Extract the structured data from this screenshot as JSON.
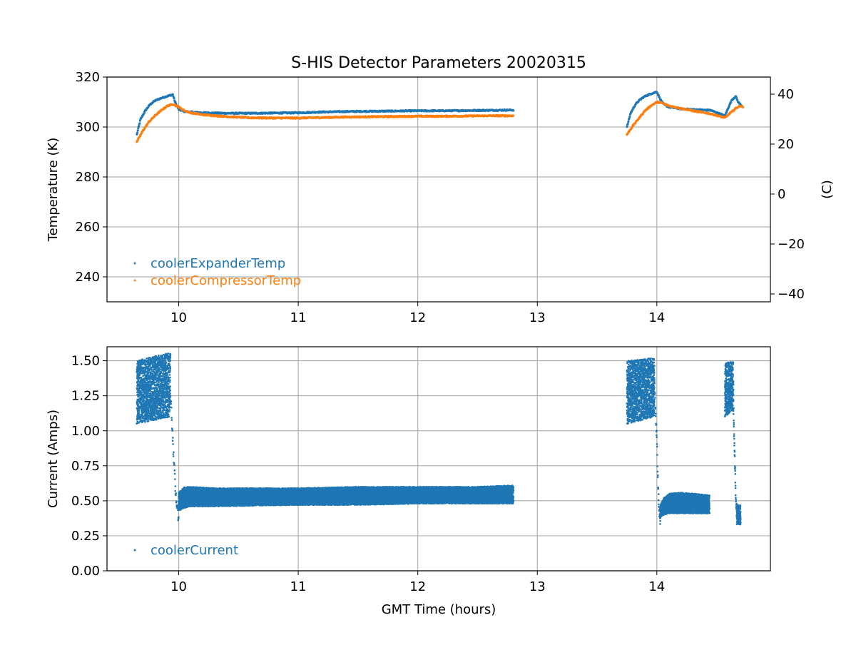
{
  "chart_data": [
    {
      "type": "scatter",
      "title": "S-HIS Detector Parameters 20020315",
      "xlabel": "",
      "ylabel": "Temperature (K)",
      "ylabel_right": "(C)",
      "xlim": [
        9.4,
        14.95
      ],
      "ylim": [
        230,
        320
      ],
      "ylim_right": [
        -43.15,
        46.85
      ],
      "xticks": [
        "10",
        "11",
        "12",
        "13",
        "14"
      ],
      "yticks": [
        "240",
        "260",
        "280",
        "300",
        "320"
      ],
      "yticks_right": [
        "−40",
        "−20",
        "0",
        "20",
        "40"
      ],
      "grid": true,
      "legend_position": "lower-left",
      "series": [
        {
          "name": "coolerExpanderTemp",
          "color": "#1f77b4",
          "x": [
            9.65,
            9.68,
            9.72,
            9.76,
            9.8,
            9.85,
            9.9,
            9.95,
            9.97,
            10.0,
            10.05,
            10.1,
            10.2,
            10.4,
            10.6,
            10.8,
            11.0,
            11.2,
            11.4,
            11.6,
            11.8,
            12.0,
            12.2,
            12.4,
            12.6,
            12.8,
            13.75,
            13.78,
            13.82,
            13.86,
            13.9,
            13.95,
            14.0,
            14.03,
            14.06,
            14.1,
            14.2,
            14.3,
            14.45,
            14.57,
            14.6,
            14.63,
            14.66,
            14.68,
            14.72
          ],
          "y": [
            297,
            303,
            306.5,
            309,
            310.5,
            311.5,
            312.3,
            313,
            310,
            307,
            306.2,
            306,
            305.7,
            305.5,
            305.5,
            305.6,
            305.7,
            306,
            306.2,
            306.3,
            306.4,
            306.5,
            306.5,
            306.6,
            306.7,
            306.8,
            300,
            305.5,
            309,
            311,
            312.3,
            313.3,
            314.1,
            311,
            309,
            308,
            307.3,
            307,
            306.7,
            304.5,
            308,
            311,
            312.3,
            310,
            308
          ]
        },
        {
          "name": "coolerCompressorTemp",
          "color": "#ff7f0e",
          "x": [
            9.65,
            9.7,
            9.75,
            9.8,
            9.85,
            9.9,
            9.95,
            10.0,
            10.05,
            10.1,
            10.2,
            10.4,
            10.6,
            10.8,
            11.0,
            11.2,
            11.4,
            11.6,
            11.8,
            12.0,
            12.2,
            12.4,
            12.6,
            12.8,
            13.75,
            13.8,
            13.85,
            13.9,
            13.95,
            14.0,
            14.05,
            14.1,
            14.2,
            14.3,
            14.45,
            14.57,
            14.6,
            14.63,
            14.66,
            14.7,
            14.72
          ],
          "y": [
            294,
            298.5,
            302,
            304.5,
            306.5,
            308.3,
            309.2,
            308,
            306.5,
            305.7,
            304.9,
            304.2,
            303.7,
            303.6,
            303.6,
            303.8,
            304,
            304.1,
            304.2,
            304.3,
            304.3,
            304.4,
            304.5,
            304.5,
            297,
            300.5,
            303.5,
            306.5,
            308.5,
            310,
            309.5,
            308.5,
            307.5,
            306.5,
            305.3,
            303.7,
            305,
            306.2,
            307.5,
            308.5,
            308
          ]
        }
      ]
    },
    {
      "type": "scatter",
      "title": "",
      "xlabel": "GMT Time (hours)",
      "ylabel": "Current (Amps)",
      "xlim": [
        9.4,
        14.95
      ],
      "ylim": [
        0,
        1.6
      ],
      "xticks": [
        "10",
        "11",
        "12",
        "13",
        "14"
      ],
      "yticks": [
        "0.00",
        "0.25",
        "0.50",
        "0.75",
        "1.00",
        "1.25",
        "1.50"
      ],
      "grid": true,
      "legend_position": "lower-left",
      "series": [
        {
          "name": "coolerCurrent",
          "color": "#1f77b4",
          "segments": [
            {
              "x": [
                9.65,
                9.93
              ],
              "low": [
                1.05,
                1.1
              ],
              "high": [
                1.5,
                1.56
              ]
            },
            {
              "x": [
                10.0,
                10.05,
                10.1,
                10.3,
                11.0,
                11.5,
                12.0,
                12.5,
                12.8
              ],
              "low": [
                0.43,
                0.45,
                0.46,
                0.46,
                0.47,
                0.47,
                0.48,
                0.48,
                0.48
              ],
              "high": [
                0.56,
                0.6,
                0.6,
                0.59,
                0.59,
                0.6,
                0.6,
                0.6,
                0.61
              ]
            },
            {
              "x": [
                13.75,
                13.98
              ],
              "low": [
                1.05,
                1.1
              ],
              "high": [
                1.5,
                1.52
              ]
            },
            {
              "x": [
                14.03,
                14.06,
                14.1,
                14.2,
                14.44
              ],
              "low": [
                0.38,
                0.4,
                0.41,
                0.41,
                0.41
              ],
              "high": [
                0.47,
                0.52,
                0.55,
                0.56,
                0.54
              ]
            },
            {
              "x": [
                14.57,
                14.64
              ],
              "low": [
                1.1,
                1.15
              ],
              "high": [
                1.48,
                1.5
              ]
            },
            {
              "x": [
                14.67,
                14.7
              ],
              "low": [
                0.33,
                0.33
              ],
              "high": [
                0.47,
                0.47
              ]
            }
          ],
          "transitions": [
            {
              "x": [
                9.93,
                9.95,
                9.97,
                9.99,
                10.0
              ],
              "y": [
                1.3,
                0.95,
                0.6,
                0.42,
                0.38
              ]
            },
            {
              "x": [
                13.98,
                14.0,
                14.01,
                14.02,
                14.03
              ],
              "y": [
                1.3,
                0.95,
                0.6,
                0.42,
                0.35
              ]
            },
            {
              "x": [
                14.64,
                14.65,
                14.66,
                14.67
              ],
              "y": [
                1.2,
                0.85,
                0.55,
                0.38
              ]
            }
          ]
        }
      ]
    }
  ]
}
